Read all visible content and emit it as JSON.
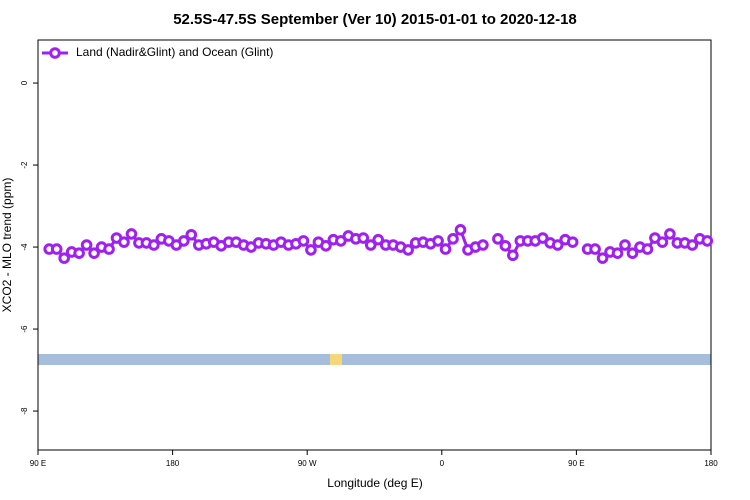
{
  "chart_data": {
    "type": "line",
    "title": "52.5S-47.5S September (Ver 10)   2015-01-01 to 2020-12-18",
    "xlabel": "Longitude (deg E)",
    "ylabel": "XCO2 - MLO trend (ppm)",
    "xlim": [
      90,
      540
    ],
    "xticks": [
      {
        "value": 90,
        "label": "90 E"
      },
      {
        "value": 180,
        "label": "180"
      },
      {
        "value": 270,
        "label": "90 W"
      },
      {
        "value": 360,
        "label": "0"
      },
      {
        "value": 450,
        "label": "90 E"
      },
      {
        "value": 540,
        "label": "180"
      }
    ],
    "ylim": [
      -8.95,
      1.05
    ],
    "yticks": [
      0,
      -2,
      -4,
      -6,
      -8
    ],
    "legend": "top-left",
    "x": [
      97.5,
      102.5,
      107.5,
      112.5,
      117.5,
      122.5,
      127.5,
      132.5,
      137.5,
      142.5,
      147.5,
      152.5,
      157.5,
      162.5,
      167.5,
      172.5,
      177.5,
      182.5,
      187.5,
      192.5,
      197.5,
      202.5,
      207.5,
      212.5,
      217.5,
      222.5,
      227.5,
      232.5,
      237.5,
      242.5,
      247.5,
      252.5,
      257.5,
      262.5,
      267.5,
      272.5,
      277.5,
      282.5,
      287.5,
      292.5,
      297.5,
      302.5,
      307.5,
      312.5,
      317.5,
      322.5,
      327.5,
      332.5,
      337.5,
      342.5,
      347.5,
      352.5,
      357.5,
      362.5,
      367.5,
      372.5,
      377.5,
      382.5,
      387.5,
      392.5,
      397.5,
      402.5,
      407.5,
      412.5,
      417.5,
      422.5,
      427.5,
      432.5,
      437.5,
      442.5,
      447.5,
      452.5,
      457.5,
      462.5,
      467.5,
      472.5,
      477.5,
      482.5,
      487.5,
      492.5,
      497.5,
      502.5,
      507.5,
      512.5,
      517.5,
      522.5,
      527.5,
      532.5,
      537.5
    ],
    "series": [
      {
        "name": "Land (Nadir&Glint) and Ocean (Glint)",
        "color": "#a020f0",
        "values": [
          -4.05,
          -4.05,
          -4.27,
          -4.12,
          -4.15,
          -3.95,
          -4.15,
          -4.0,
          -4.05,
          -3.78,
          -3.88,
          -3.68,
          -3.9,
          -3.9,
          -3.95,
          -3.8,
          -3.85,
          -3.95,
          -3.85,
          -3.7,
          -3.95,
          -3.92,
          -3.88,
          -3.97,
          -3.88,
          -3.88,
          -3.95,
          -4.0,
          -3.9,
          -3.92,
          -3.95,
          -3.88,
          -3.95,
          -3.92,
          -3.85,
          -4.07,
          -3.88,
          -3.97,
          -3.82,
          -3.85,
          -3.73,
          -3.8,
          -3.78,
          -3.95,
          -3.82,
          -3.95,
          -3.95,
          -4.0,
          -4.07,
          -3.9,
          -3.88,
          -3.92,
          -3.85,
          -4.05,
          -3.8,
          -3.58,
          -4.07,
          -4.0,
          -3.95,
          null,
          -3.8,
          -3.97,
          -4.2,
          -3.85,
          -3.85,
          -3.85,
          -3.78,
          -3.9,
          -3.95,
          -3.82,
          -3.88,
          null,
          -4.05,
          -4.05,
          -4.27,
          -4.12,
          -4.15,
          -3.95,
          -4.15,
          -4.0,
          -4.05,
          -3.78,
          -3.88,
          -3.68,
          -3.9,
          -3.9,
          -3.95,
          -3.8,
          -3.85
        ]
      }
    ]
  }
}
